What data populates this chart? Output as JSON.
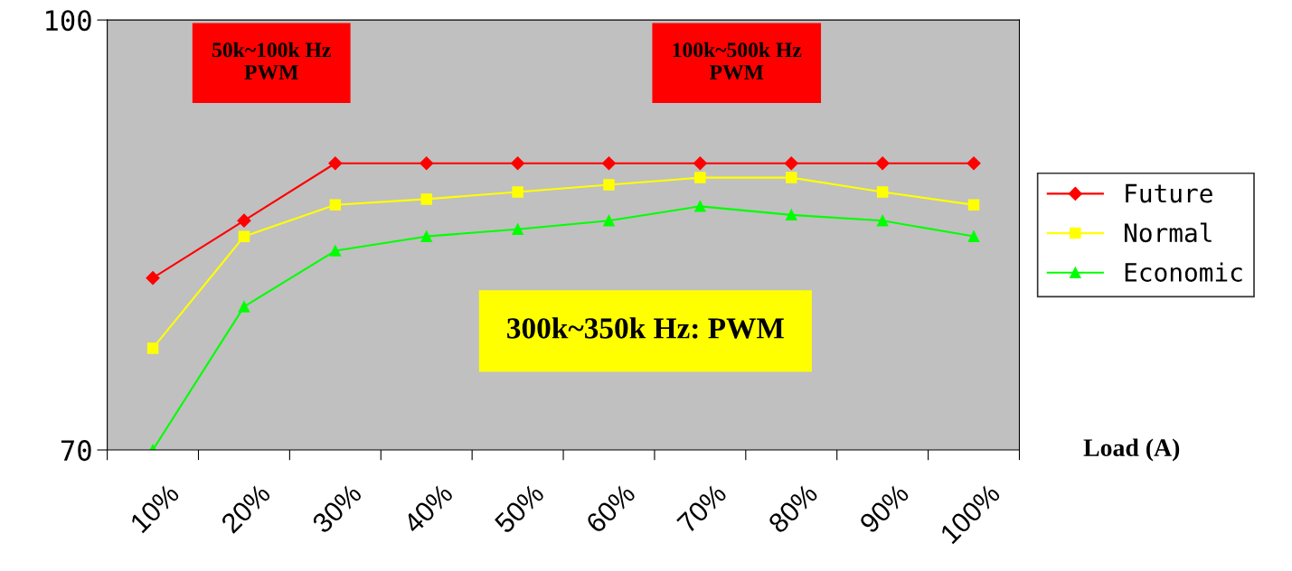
{
  "chart_data": {
    "type": "line",
    "xlabel": "Load (A)",
    "categories": [
      "10%",
      "20%",
      "30%",
      "40%",
      "50%",
      "60%",
      "70%",
      "80%",
      "90%",
      "100%"
    ],
    "ylim": [
      70,
      100
    ],
    "yticks": [
      70,
      100
    ],
    "grid": false,
    "legend": "right",
    "series": [
      {
        "name": "Future",
        "color": "#ff0000",
        "marker": "diamond",
        "values": [
          82.0,
          86.0,
          90.0,
          90.0,
          90.0,
          90.0,
          90.0,
          90.0,
          90.0,
          90.0
        ]
      },
      {
        "name": "Normal",
        "color": "#ffff00",
        "marker": "square",
        "values": [
          77.1,
          84.9,
          87.1,
          87.5,
          88.0,
          88.5,
          89.0,
          89.0,
          88.0,
          87.1
        ]
      },
      {
        "name": "Economic",
        "color": "#00ff00",
        "marker": "triangle",
        "values": [
          70.0,
          80.0,
          83.9,
          84.9,
          85.4,
          86.0,
          87.0,
          86.4,
          86.0,
          84.9
        ]
      }
    ],
    "annotations": [
      "50k~100k Hz\nPWM",
      "100k~500k Hz\nPWM",
      "300k~350k Hz: PWM"
    ]
  }
}
